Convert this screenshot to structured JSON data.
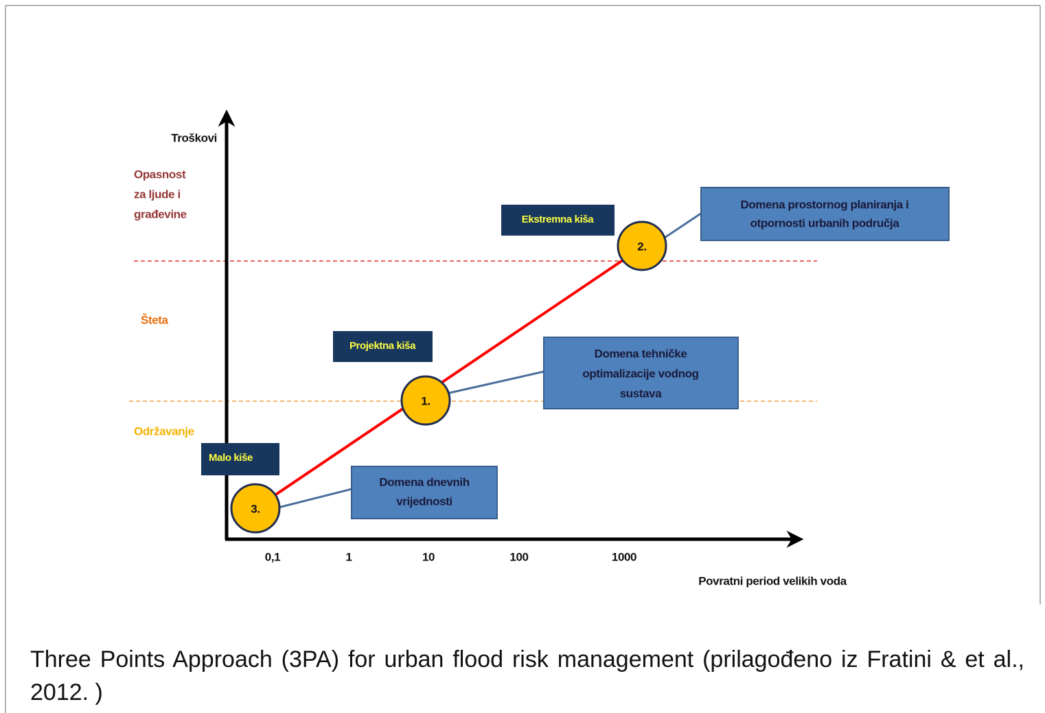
{
  "axes": {
    "y_label": "Troškovi",
    "x_label": "Povratni period velikih voda",
    "x_ticks": [
      "0,1",
      "1",
      "10",
      "100",
      "1000"
    ]
  },
  "zones": [
    {
      "label_lines": [
        "Opasnost",
        "za ljude i",
        "građevine"
      ]
    },
    {
      "label_lines": [
        "Šteta"
      ]
    },
    {
      "label_lines": [
        "Održavanje"
      ]
    }
  ],
  "rain_labels": [
    "Ekstremna kiša",
    "Projektna kiša",
    "Malo kiše"
  ],
  "points": [
    {
      "label": "1.",
      "domain_lines": [
        "Domena tehničke",
        "optimalizacije vodnog",
        "sustava"
      ]
    },
    {
      "label": "2.",
      "domain_lines": [
        "Domena prostornog planiranja i",
        "otpornosti urbanih područja"
      ]
    },
    {
      "label": "3.",
      "domain_lines": [
        "Domena dnevnih",
        "vrijednosti"
      ]
    }
  ],
  "caption": "Three Points Approach (3PA) for urban flood risk management (prilagođeno iz Fratini & et al., 2012. )"
}
